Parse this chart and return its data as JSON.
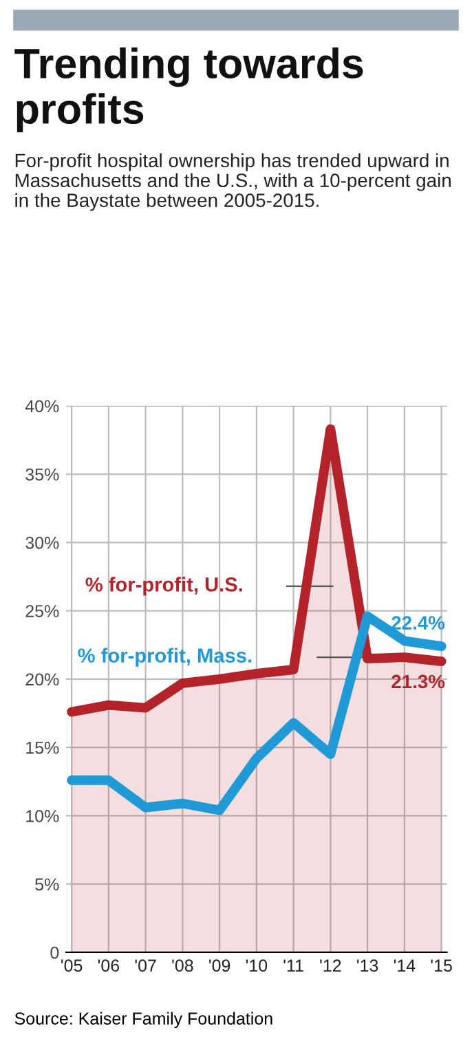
{
  "chart_data": {
    "type": "line",
    "title": "Trending towards profits",
    "subtitle": "For-profit hospital ownership has trended upward in Massachusetts and the U.S., with a 10-percent gain in the Baystate between 2005-2015.",
    "categories": [
      "'05",
      "'06",
      "'07",
      "'08",
      "'09",
      "'10",
      "'11",
      "'12",
      "'13",
      "'14",
      "'15"
    ],
    "series": [
      {
        "name": "% for-profit, U.S.",
        "type": "area",
        "color": "#b5232a",
        "values": [
          17.6,
          18.1,
          17.9,
          19.7,
          20.0,
          20.4,
          20.7,
          38.3,
          21.5,
          21.6,
          21.3
        ],
        "value_labels": [
          null,
          null,
          null,
          null,
          null,
          null,
          null,
          null,
          null,
          null,
          "21.3%"
        ]
      },
      {
        "name": "% for-profit, Mass.",
        "color": "#1f9ad6",
        "values": [
          12.6,
          12.6,
          10.6,
          10.9,
          10.4,
          14.2,
          16.8,
          14.5,
          24.6,
          22.8,
          22.4
        ],
        "value_labels": [
          null,
          null,
          null,
          null,
          null,
          null,
          null,
          null,
          null,
          null,
          "22.4%"
        ]
      }
    ],
    "ylim": [
      0,
      40
    ],
    "yticks": [
      0,
      {
        "value": 5,
        "label": "5%"
      },
      {
        "value": 10,
        "label": "10%"
      },
      {
        "value": 15,
        "label": "15%"
      },
      {
        "value": 20,
        "label": "20%"
      },
      {
        "value": 25,
        "label": "25%"
      },
      {
        "value": 30,
        "label": "30%"
      },
      {
        "value": 35,
        "label": "35%"
      },
      {
        "value": 40,
        "label": "40%"
      }
    ],
    "grid": true,
    "legend": false,
    "annotations": [
      "Source: Kaiser Family Foundation"
    ]
  }
}
